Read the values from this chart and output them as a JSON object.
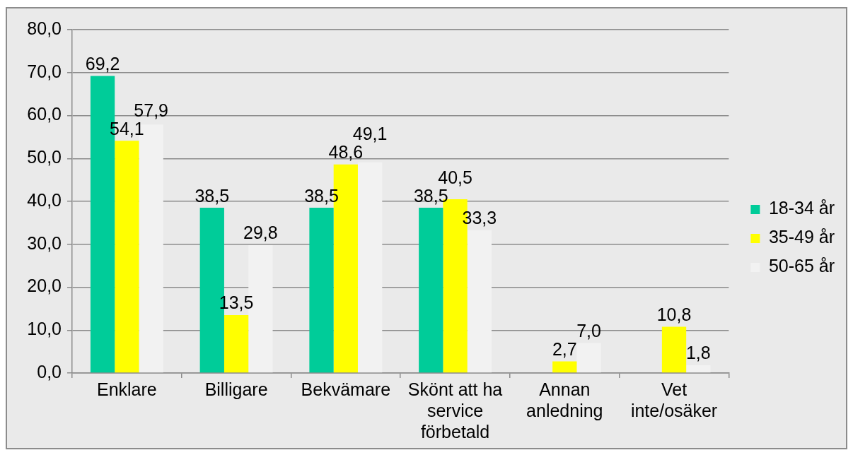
{
  "chart_data": {
    "type": "bar",
    "categories": [
      "Enklare",
      "Billigare",
      "Bekvämare",
      "Skönt att ha service förbetald",
      "Annan anledning",
      "Vet inte/osäker"
    ],
    "series": [
      {
        "name": "18-34 år",
        "color": "#00cc99",
        "values": [
          69.2,
          38.5,
          38.5,
          38.5,
          null,
          null
        ],
        "value_labels": [
          "69,2",
          "38,5",
          "38,5",
          "38,5",
          null,
          null
        ]
      },
      {
        "name": "35-49 år",
        "color": "#ffff00",
        "values": [
          54.1,
          13.5,
          48.6,
          40.5,
          2.7,
          10.8
        ],
        "value_labels": [
          "54,1",
          "13,5",
          "48,6",
          "40,5",
          "2,7",
          "10,8"
        ]
      },
      {
        "name": "50-65 år",
        "color": "#f2f2f2",
        "values": [
          57.9,
          29.8,
          49.1,
          33.3,
          7.0,
          1.8
        ],
        "value_labels": [
          "57,9",
          "29,8",
          "49,1",
          "33,3",
          "7,0",
          "1,8"
        ]
      }
    ],
    "ylim": [
      0,
      80
    ],
    "yticks": [
      {
        "value": 0,
        "label": "0,0"
      },
      {
        "value": 10,
        "label": "10,0"
      },
      {
        "value": 20,
        "label": "20,0"
      },
      {
        "value": 30,
        "label": "30,0"
      },
      {
        "value": 40,
        "label": "40,0"
      },
      {
        "value": 50,
        "label": "50,0"
      },
      {
        "value": 60,
        "label": "60,0"
      },
      {
        "value": 70,
        "label": "70,0"
      },
      {
        "value": 80,
        "label": "80,0"
      }
    ],
    "grid": "y",
    "legend": "right"
  }
}
